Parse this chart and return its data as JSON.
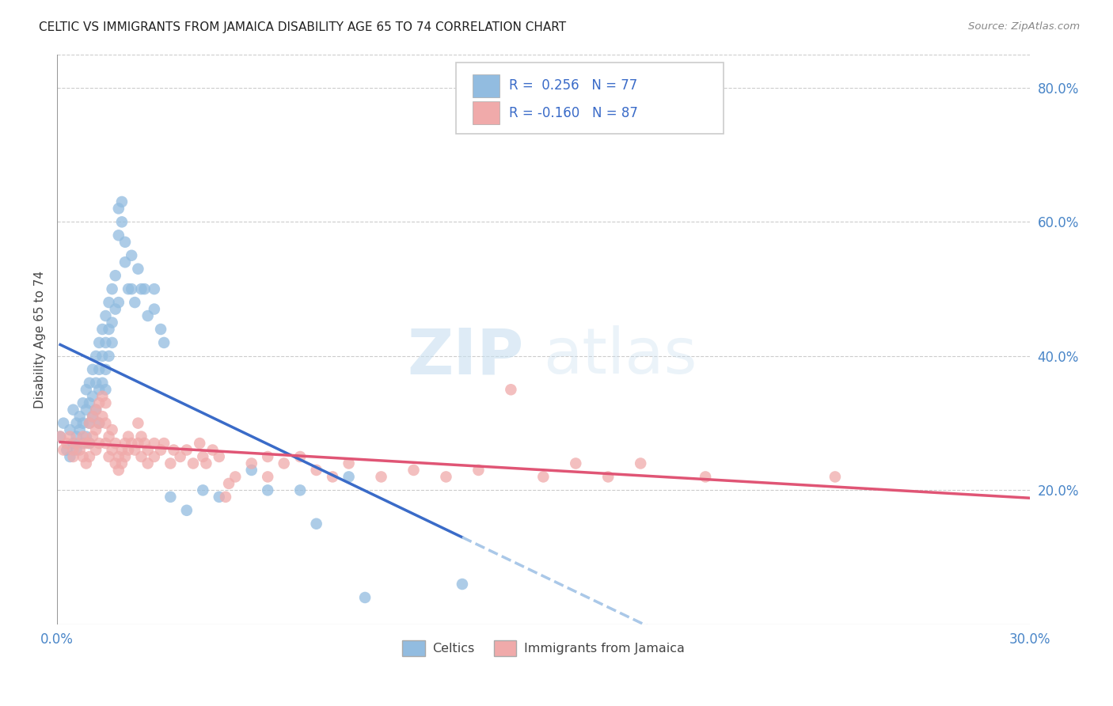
{
  "title": "CELTIC VS IMMIGRANTS FROM JAMAICA DISABILITY AGE 65 TO 74 CORRELATION CHART",
  "source": "Source: ZipAtlas.com",
  "ylabel": "Disability Age 65 to 74",
  "x_min": 0.0,
  "x_max": 0.3,
  "y_min": 0.0,
  "y_max": 0.85,
  "x_tick_positions": [
    0.0,
    0.05,
    0.1,
    0.15,
    0.2,
    0.25,
    0.3
  ],
  "x_tick_labels": [
    "0.0%",
    "",
    "",
    "",
    "",
    "",
    "30.0%"
  ],
  "y_ticks_right": [
    0.2,
    0.4,
    0.6,
    0.8
  ],
  "y_tick_labels_right": [
    "20.0%",
    "40.0%",
    "60.0%",
    "80.0%"
  ],
  "celtics_color": "#92bce0",
  "jamaica_color": "#f0aaaa",
  "celtics_line_color": "#3a6bc8",
  "jamaica_line_color": "#e05575",
  "dashed_line_color": "#aac8e8",
  "celtics_R": 0.256,
  "celtics_N": 77,
  "jamaica_R": -0.16,
  "jamaica_N": 87,
  "legend_label_celtics": "Celtics",
  "legend_label_jamaica": "Immigrants from Jamaica",
  "watermark_zip": "ZIP",
  "watermark_atlas": "atlas",
  "celtics_scatter": [
    [
      0.001,
      0.28
    ],
    [
      0.002,
      0.3
    ],
    [
      0.003,
      0.26
    ],
    [
      0.004,
      0.29
    ],
    [
      0.004,
      0.25
    ],
    [
      0.005,
      0.32
    ],
    [
      0.005,
      0.27
    ],
    [
      0.006,
      0.3
    ],
    [
      0.006,
      0.28
    ],
    [
      0.006,
      0.26
    ],
    [
      0.007,
      0.31
    ],
    [
      0.007,
      0.29
    ],
    [
      0.008,
      0.33
    ],
    [
      0.008,
      0.3
    ],
    [
      0.008,
      0.27
    ],
    [
      0.009,
      0.35
    ],
    [
      0.009,
      0.32
    ],
    [
      0.009,
      0.28
    ],
    [
      0.01,
      0.36
    ],
    [
      0.01,
      0.33
    ],
    [
      0.01,
      0.3
    ],
    [
      0.01,
      0.27
    ],
    [
      0.011,
      0.38
    ],
    [
      0.011,
      0.34
    ],
    [
      0.011,
      0.31
    ],
    [
      0.012,
      0.4
    ],
    [
      0.012,
      0.36
    ],
    [
      0.012,
      0.32
    ],
    [
      0.013,
      0.42
    ],
    [
      0.013,
      0.38
    ],
    [
      0.013,
      0.35
    ],
    [
      0.013,
      0.3
    ],
    [
      0.014,
      0.44
    ],
    [
      0.014,
      0.4
    ],
    [
      0.014,
      0.36
    ],
    [
      0.015,
      0.46
    ],
    [
      0.015,
      0.42
    ],
    [
      0.015,
      0.38
    ],
    [
      0.015,
      0.35
    ],
    [
      0.016,
      0.48
    ],
    [
      0.016,
      0.44
    ],
    [
      0.016,
      0.4
    ],
    [
      0.017,
      0.5
    ],
    [
      0.017,
      0.45
    ],
    [
      0.017,
      0.42
    ],
    [
      0.018,
      0.52
    ],
    [
      0.018,
      0.47
    ],
    [
      0.019,
      0.62
    ],
    [
      0.019,
      0.58
    ],
    [
      0.019,
      0.48
    ],
    [
      0.02,
      0.63
    ],
    [
      0.02,
      0.6
    ],
    [
      0.021,
      0.57
    ],
    [
      0.021,
      0.54
    ],
    [
      0.022,
      0.5
    ],
    [
      0.023,
      0.55
    ],
    [
      0.023,
      0.5
    ],
    [
      0.024,
      0.48
    ],
    [
      0.025,
      0.53
    ],
    [
      0.026,
      0.5
    ],
    [
      0.027,
      0.5
    ],
    [
      0.028,
      0.46
    ],
    [
      0.03,
      0.5
    ],
    [
      0.03,
      0.47
    ],
    [
      0.032,
      0.44
    ],
    [
      0.033,
      0.42
    ],
    [
      0.035,
      0.19
    ],
    [
      0.04,
      0.17
    ],
    [
      0.045,
      0.2
    ],
    [
      0.05,
      0.19
    ],
    [
      0.06,
      0.23
    ],
    [
      0.065,
      0.2
    ],
    [
      0.075,
      0.2
    ],
    [
      0.08,
      0.15
    ],
    [
      0.09,
      0.22
    ],
    [
      0.095,
      0.04
    ],
    [
      0.125,
      0.06
    ]
  ],
  "jamaica_scatter": [
    [
      0.001,
      0.28
    ],
    [
      0.002,
      0.26
    ],
    [
      0.003,
      0.27
    ],
    [
      0.004,
      0.28
    ],
    [
      0.005,
      0.26
    ],
    [
      0.005,
      0.25
    ],
    [
      0.006,
      0.27
    ],
    [
      0.007,
      0.26
    ],
    [
      0.008,
      0.28
    ],
    [
      0.008,
      0.25
    ],
    [
      0.009,
      0.27
    ],
    [
      0.009,
      0.24
    ],
    [
      0.01,
      0.3
    ],
    [
      0.01,
      0.27
    ],
    [
      0.01,
      0.25
    ],
    [
      0.011,
      0.31
    ],
    [
      0.011,
      0.28
    ],
    [
      0.012,
      0.32
    ],
    [
      0.012,
      0.29
    ],
    [
      0.012,
      0.26
    ],
    [
      0.013,
      0.33
    ],
    [
      0.013,
      0.3
    ],
    [
      0.013,
      0.27
    ],
    [
      0.014,
      0.34
    ],
    [
      0.014,
      0.31
    ],
    [
      0.015,
      0.33
    ],
    [
      0.015,
      0.3
    ],
    [
      0.015,
      0.27
    ],
    [
      0.016,
      0.28
    ],
    [
      0.016,
      0.25
    ],
    [
      0.017,
      0.29
    ],
    [
      0.017,
      0.26
    ],
    [
      0.018,
      0.27
    ],
    [
      0.018,
      0.24
    ],
    [
      0.019,
      0.25
    ],
    [
      0.019,
      0.23
    ],
    [
      0.02,
      0.26
    ],
    [
      0.02,
      0.24
    ],
    [
      0.021,
      0.27
    ],
    [
      0.021,
      0.25
    ],
    [
      0.022,
      0.28
    ],
    [
      0.022,
      0.26
    ],
    [
      0.023,
      0.27
    ],
    [
      0.024,
      0.26
    ],
    [
      0.025,
      0.3
    ],
    [
      0.025,
      0.27
    ],
    [
      0.026,
      0.28
    ],
    [
      0.026,
      0.25
    ],
    [
      0.027,
      0.27
    ],
    [
      0.028,
      0.26
    ],
    [
      0.028,
      0.24
    ],
    [
      0.03,
      0.27
    ],
    [
      0.03,
      0.25
    ],
    [
      0.032,
      0.26
    ],
    [
      0.033,
      0.27
    ],
    [
      0.035,
      0.24
    ],
    [
      0.036,
      0.26
    ],
    [
      0.038,
      0.25
    ],
    [
      0.04,
      0.26
    ],
    [
      0.042,
      0.24
    ],
    [
      0.044,
      0.27
    ],
    [
      0.045,
      0.25
    ],
    [
      0.046,
      0.24
    ],
    [
      0.048,
      0.26
    ],
    [
      0.05,
      0.25
    ],
    [
      0.052,
      0.19
    ],
    [
      0.053,
      0.21
    ],
    [
      0.055,
      0.22
    ],
    [
      0.06,
      0.24
    ],
    [
      0.065,
      0.25
    ],
    [
      0.065,
      0.22
    ],
    [
      0.07,
      0.24
    ],
    [
      0.075,
      0.25
    ],
    [
      0.08,
      0.23
    ],
    [
      0.085,
      0.22
    ],
    [
      0.09,
      0.24
    ],
    [
      0.1,
      0.22
    ],
    [
      0.11,
      0.23
    ],
    [
      0.12,
      0.22
    ],
    [
      0.13,
      0.23
    ],
    [
      0.14,
      0.35
    ],
    [
      0.15,
      0.22
    ],
    [
      0.16,
      0.24
    ],
    [
      0.17,
      0.22
    ],
    [
      0.18,
      0.24
    ],
    [
      0.2,
      0.22
    ],
    [
      0.24,
      0.22
    ]
  ]
}
